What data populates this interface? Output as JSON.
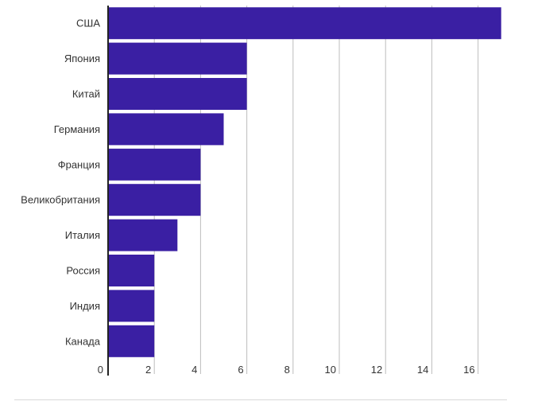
{
  "chart_data": {
    "type": "bar",
    "orientation": "horizontal",
    "categories": [
      "США",
      "Япония",
      "Китай",
      "Германия",
      "Франция",
      "Великобритания",
      "Италия",
      "Россия",
      "Индия",
      "Канада"
    ],
    "values": [
      17,
      6,
      6,
      5,
      4,
      4,
      3,
      2,
      2,
      2
    ],
    "xlim": [
      0,
      17
    ],
    "x_ticks": [
      "0",
      "2",
      "4",
      "6",
      "8",
      "10",
      "12",
      "14",
      "16"
    ],
    "title": "",
    "xlabel": "",
    "ylabel": "",
    "grid": true,
    "legend": "none",
    "colors": {
      "bar": "#3a1fa3",
      "grid": "#bdbdbd",
      "axis": "#222222"
    }
  }
}
